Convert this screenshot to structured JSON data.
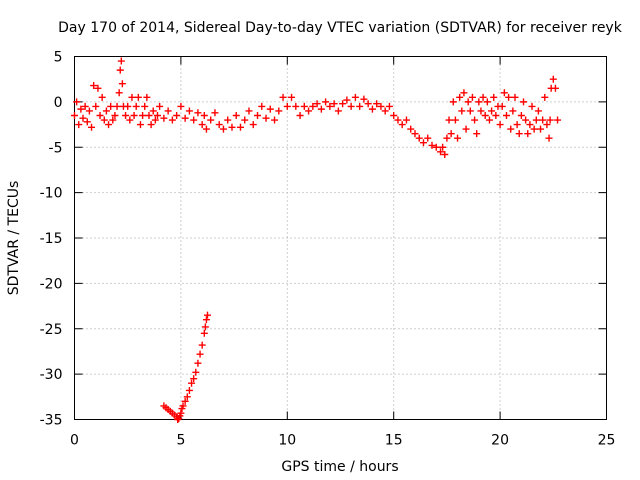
{
  "chart_data": {
    "type": "scatter",
    "title": "Day 170 of 2014, Sidereal Day-to-day VTEC variation (SDTVAR) for receiver reyk",
    "xlabel": "GPS time / hours",
    "ylabel": "SDTVAR / TECUs",
    "xlim": [
      0,
      25
    ],
    "ylim": [
      -35,
      5
    ],
    "x_ticks": [
      0,
      5,
      10,
      15,
      20,
      25
    ],
    "x_tick_labels": [
      "0",
      "5",
      "10",
      "15",
      "20",
      "25"
    ],
    "y_ticks": [
      5,
      0,
      -5,
      -10,
      -15,
      -20,
      -25,
      -30,
      -35
    ],
    "y_tick_labels": [
      "5",
      "0",
      "-5",
      "-10",
      "-15",
      "-20",
      "-25",
      "-30",
      "-35"
    ],
    "grid": true,
    "marker": "plus",
    "color": "#ff0000",
    "series": [
      {
        "name": "main trace",
        "points": [
          [
            0.0,
            -1.5
          ],
          [
            0.1,
            0.0
          ],
          [
            0.2,
            -2.5
          ],
          [
            0.3,
            -0.8
          ],
          [
            0.4,
            -1.8
          ],
          [
            0.5,
            -0.5
          ],
          [
            0.6,
            -2.2
          ],
          [
            0.7,
            -1.0
          ],
          [
            0.8,
            -2.8
          ],
          [
            0.9,
            1.8
          ],
          [
            1.0,
            -0.5
          ],
          [
            1.1,
            1.5
          ],
          [
            1.2,
            -1.5
          ],
          [
            1.3,
            0.5
          ],
          [
            1.4,
            -2.0
          ],
          [
            1.5,
            -1.0
          ],
          [
            1.6,
            -2.5
          ],
          [
            1.7,
            -0.5
          ],
          [
            1.8,
            -2.0
          ],
          [
            1.9,
            -1.5
          ],
          [
            2.0,
            -0.5
          ],
          [
            2.1,
            1.0
          ],
          [
            2.15,
            3.5
          ],
          [
            2.2,
            4.5
          ],
          [
            2.25,
            2.0
          ],
          [
            2.3,
            -0.5
          ],
          [
            2.4,
            -1.5
          ],
          [
            2.5,
            -0.5
          ],
          [
            2.6,
            -2.0
          ],
          [
            2.7,
            0.5
          ],
          [
            2.8,
            -1.5
          ],
          [
            2.9,
            -0.5
          ],
          [
            3.0,
            0.5
          ],
          [
            3.1,
            -2.5
          ],
          [
            3.2,
            -1.5
          ],
          [
            3.3,
            -0.5
          ],
          [
            3.4,
            0.5
          ],
          [
            3.5,
            -1.5
          ],
          [
            3.6,
            -2.5
          ],
          [
            3.7,
            -1.0
          ],
          [
            3.8,
            -2.0
          ],
          [
            3.9,
            -1.5
          ],
          [
            4.0,
            -0.5
          ],
          [
            4.2,
            -1.8
          ],
          [
            4.4,
            -1.0
          ],
          [
            4.6,
            -2.0
          ],
          [
            4.8,
            -1.5
          ],
          [
            5.0,
            -0.5
          ],
          [
            5.2,
            -1.8
          ],
          [
            5.4,
            -1.0
          ],
          [
            5.6,
            -2.0
          ],
          [
            5.8,
            -1.2
          ],
          [
            6.0,
            -2.5
          ],
          [
            6.1,
            -1.5
          ],
          [
            6.2,
            -3.0
          ],
          [
            6.4,
            -2.0
          ],
          [
            6.6,
            -1.2
          ],
          [
            6.8,
            -2.5
          ],
          [
            7.0,
            -3.0
          ],
          [
            7.2,
            -2.0
          ],
          [
            7.4,
            -2.8
          ],
          [
            7.6,
            -1.5
          ],
          [
            7.8,
            -2.8
          ],
          [
            8.0,
            -2.0
          ],
          [
            8.2,
            -1.0
          ],
          [
            8.4,
            -2.5
          ],
          [
            8.6,
            -1.5
          ],
          [
            8.8,
            -0.5
          ],
          [
            9.0,
            -1.8
          ],
          [
            9.2,
            -0.8
          ],
          [
            9.4,
            -2.0
          ],
          [
            9.6,
            -1.0
          ],
          [
            9.8,
            0.5
          ],
          [
            10.0,
            -0.5
          ],
          [
            10.2,
            0.5
          ],
          [
            10.4,
            -0.5
          ],
          [
            10.6,
            -1.5
          ],
          [
            10.8,
            -0.5
          ],
          [
            11.0,
            -1.0
          ],
          [
            11.2,
            -0.5
          ],
          [
            11.4,
            -0.2
          ],
          [
            11.6,
            -0.8
          ],
          [
            11.8,
            0.0
          ],
          [
            12.0,
            -0.5
          ],
          [
            12.2,
            -0.2
          ],
          [
            12.4,
            -1.0
          ],
          [
            12.6,
            -0.2
          ],
          [
            12.8,
            0.2
          ],
          [
            13.0,
            -0.5
          ],
          [
            13.2,
            0.5
          ],
          [
            13.4,
            -0.5
          ],
          [
            13.6,
            0.3
          ],
          [
            13.8,
            -0.2
          ],
          [
            14.0,
            -0.8
          ],
          [
            14.2,
            -0.2
          ],
          [
            14.4,
            -0.5
          ],
          [
            14.6,
            -1.0
          ],
          [
            14.8,
            -0.5
          ],
          [
            15.0,
            -1.5
          ],
          [
            15.2,
            -2.0
          ],
          [
            15.4,
            -2.5
          ],
          [
            15.6,
            -2.0
          ],
          [
            15.8,
            -3.0
          ],
          [
            16.0,
            -3.5
          ],
          [
            16.2,
            -4.0
          ],
          [
            16.4,
            -4.5
          ],
          [
            16.6,
            -4.0
          ],
          [
            16.8,
            -4.8
          ],
          [
            17.0,
            -5.0
          ],
          [
            17.2,
            -5.5
          ],
          [
            17.3,
            -5.0
          ],
          [
            17.4,
            -5.8
          ],
          [
            17.5,
            -4.0
          ],
          [
            17.6,
            -2.0
          ],
          [
            17.7,
            -3.5
          ],
          [
            17.8,
            0.0
          ],
          [
            17.9,
            -2.0
          ],
          [
            18.0,
            -4.0
          ],
          [
            18.1,
            0.5
          ],
          [
            18.2,
            -1.0
          ],
          [
            18.3,
            1.0
          ],
          [
            18.4,
            -3.0
          ],
          [
            18.5,
            0.0
          ],
          [
            18.6,
            -1.0
          ],
          [
            18.7,
            0.5
          ],
          [
            18.8,
            -2.0
          ],
          [
            18.9,
            -3.5
          ],
          [
            19.0,
            0.0
          ],
          [
            19.1,
            -1.0
          ],
          [
            19.2,
            0.5
          ],
          [
            19.3,
            -1.5
          ],
          [
            19.4,
            0.0
          ],
          [
            19.5,
            -2.0
          ],
          [
            19.6,
            -1.0
          ],
          [
            19.7,
            0.5
          ],
          [
            19.8,
            -1.5
          ],
          [
            19.9,
            -0.5
          ],
          [
            20.0,
            -2.5
          ],
          [
            20.1,
            -0.5
          ],
          [
            20.2,
            1.0
          ],
          [
            20.3,
            -1.5
          ],
          [
            20.4,
            0.5
          ],
          [
            20.5,
            -3.0
          ],
          [
            20.6,
            -1.0
          ],
          [
            20.7,
            0.5
          ],
          [
            20.8,
            -2.5
          ],
          [
            20.9,
            -3.5
          ],
          [
            21.0,
            -1.5
          ],
          [
            21.1,
            0.0
          ],
          [
            21.2,
            -2.0
          ],
          [
            21.3,
            -3.5
          ],
          [
            21.4,
            -2.5
          ],
          [
            21.5,
            -0.5
          ],
          [
            21.6,
            -3.0
          ],
          [
            21.7,
            -2.0
          ],
          [
            21.8,
            -1.0
          ],
          [
            21.9,
            -3.0
          ],
          [
            22.0,
            -2.0
          ],
          [
            22.1,
            0.5
          ],
          [
            22.2,
            -2.5
          ],
          [
            22.3,
            -4.0
          ],
          [
            22.35,
            -2.0
          ],
          [
            22.4,
            1.5
          ],
          [
            22.5,
            2.5
          ],
          [
            22.6,
            1.5
          ],
          [
            22.7,
            -2.0
          ]
        ]
      },
      {
        "name": "low excursion",
        "points": [
          [
            4.2,
            -33.5
          ],
          [
            4.3,
            -33.7
          ],
          [
            4.4,
            -33.9
          ],
          [
            4.5,
            -34.1
          ],
          [
            4.6,
            -34.3
          ],
          [
            4.7,
            -34.5
          ],
          [
            4.8,
            -34.7
          ],
          [
            4.85,
            -35.0
          ],
          [
            4.9,
            -34.9
          ],
          [
            4.95,
            -34.6
          ],
          [
            5.0,
            -34.3
          ],
          [
            5.05,
            -33.8
          ],
          [
            5.1,
            -33.5
          ],
          [
            5.2,
            -33.0
          ],
          [
            5.3,
            -32.5
          ],
          [
            5.4,
            -31.8
          ],
          [
            5.5,
            -31.0
          ],
          [
            5.6,
            -30.5
          ],
          [
            5.7,
            -29.8
          ],
          [
            5.8,
            -28.8
          ],
          [
            5.9,
            -27.8
          ],
          [
            6.0,
            -26.8
          ],
          [
            6.1,
            -25.5
          ],
          [
            6.15,
            -24.8
          ],
          [
            6.2,
            -24.0
          ],
          [
            6.25,
            -23.5
          ]
        ]
      }
    ]
  }
}
